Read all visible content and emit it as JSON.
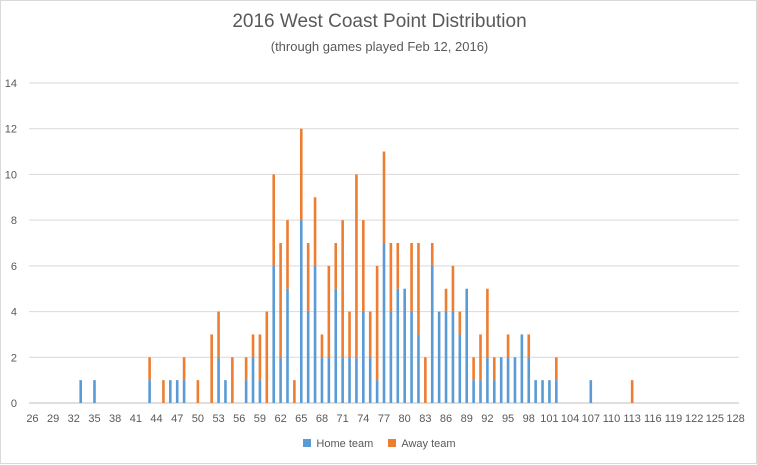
{
  "chart_data": {
    "type": "bar",
    "stacked": true,
    "title": "2016 West Coast Point Distribution",
    "subtitle": "(through games played Feb 12, 2016)",
    "xlabel": "",
    "ylabel": "",
    "ylim": [
      0,
      14
    ],
    "yticks": [
      0,
      2,
      4,
      6,
      8,
      10,
      12,
      14
    ],
    "grid": true,
    "legend_position": "bottom",
    "x_start": 26,
    "x_end": 129,
    "x_tick_labels": [
      "26",
      "29",
      "32",
      "35",
      "38",
      "41",
      "44",
      "47",
      "50",
      "53",
      "56",
      "59",
      "62",
      "65",
      "68",
      "71",
      "74",
      "77",
      "80",
      "83",
      "86",
      "89",
      "92",
      "95",
      "98",
      "101",
      "104",
      "107",
      "110",
      "113",
      "116",
      "119",
      "122",
      "125",
      "128"
    ],
    "series": [
      {
        "name": "Home team",
        "color": "#5b9bd5",
        "points": [
          [
            33,
            1
          ],
          [
            35,
            1
          ],
          [
            43,
            1
          ],
          [
            46,
            1
          ],
          [
            47,
            1
          ],
          [
            48,
            1
          ],
          [
            53,
            2
          ],
          [
            54,
            1
          ],
          [
            57,
            1
          ],
          [
            58,
            2
          ],
          [
            59,
            1
          ],
          [
            61,
            6
          ],
          [
            62,
            2
          ],
          [
            63,
            5
          ],
          [
            65,
            8
          ],
          [
            66,
            4
          ],
          [
            67,
            6
          ],
          [
            68,
            2
          ],
          [
            69,
            2
          ],
          [
            70,
            5
          ],
          [
            71,
            2
          ],
          [
            72,
            2
          ],
          [
            73,
            2
          ],
          [
            74,
            4
          ],
          [
            75,
            2
          ],
          [
            76,
            1
          ],
          [
            77,
            7
          ],
          [
            78,
            4
          ],
          [
            79,
            5
          ],
          [
            80,
            5
          ],
          [
            81,
            4
          ],
          [
            82,
            3
          ],
          [
            84,
            6
          ],
          [
            85,
            4
          ],
          [
            86,
            4
          ],
          [
            87,
            4
          ],
          [
            88,
            3
          ],
          [
            89,
            5
          ],
          [
            90,
            1
          ],
          [
            91,
            1
          ],
          [
            92,
            2
          ],
          [
            93,
            1
          ],
          [
            94,
            2
          ],
          [
            95,
            2
          ],
          [
            96,
            2
          ],
          [
            97,
            3
          ],
          [
            98,
            2
          ],
          [
            99,
            1
          ],
          [
            100,
            1
          ],
          [
            101,
            1
          ],
          [
            102,
            1
          ],
          [
            107,
            1
          ]
        ]
      },
      {
        "name": "Away team",
        "color": "#ed7d31",
        "points": [
          [
            43,
            1
          ],
          [
            45,
            1
          ],
          [
            46,
            0
          ],
          [
            48,
            1
          ],
          [
            50,
            1
          ],
          [
            52,
            3
          ],
          [
            53,
            2
          ],
          [
            55,
            2
          ],
          [
            57,
            1
          ],
          [
            58,
            1
          ],
          [
            59,
            2
          ],
          [
            60,
            4
          ],
          [
            61,
            4
          ],
          [
            62,
            5
          ],
          [
            63,
            3
          ],
          [
            64,
            1
          ],
          [
            65,
            4
          ],
          [
            66,
            3
          ],
          [
            67,
            3
          ],
          [
            68,
            1
          ],
          [
            69,
            4
          ],
          [
            70,
            2
          ],
          [
            71,
            6
          ],
          [
            72,
            2
          ],
          [
            73,
            8
          ],
          [
            74,
            4
          ],
          [
            75,
            2
          ],
          [
            76,
            5
          ],
          [
            77,
            4
          ],
          [
            78,
            3
          ],
          [
            79,
            2
          ],
          [
            80,
            0
          ],
          [
            81,
            3
          ],
          [
            82,
            4
          ],
          [
            83,
            2
          ],
          [
            84,
            1
          ],
          [
            86,
            1
          ],
          [
            87,
            2
          ],
          [
            88,
            1
          ],
          [
            90,
            1
          ],
          [
            91,
            2
          ],
          [
            92,
            3
          ],
          [
            93,
            1
          ],
          [
            95,
            1
          ],
          [
            98,
            1
          ],
          [
            102,
            1
          ],
          [
            113,
            1
          ]
        ]
      }
    ]
  }
}
